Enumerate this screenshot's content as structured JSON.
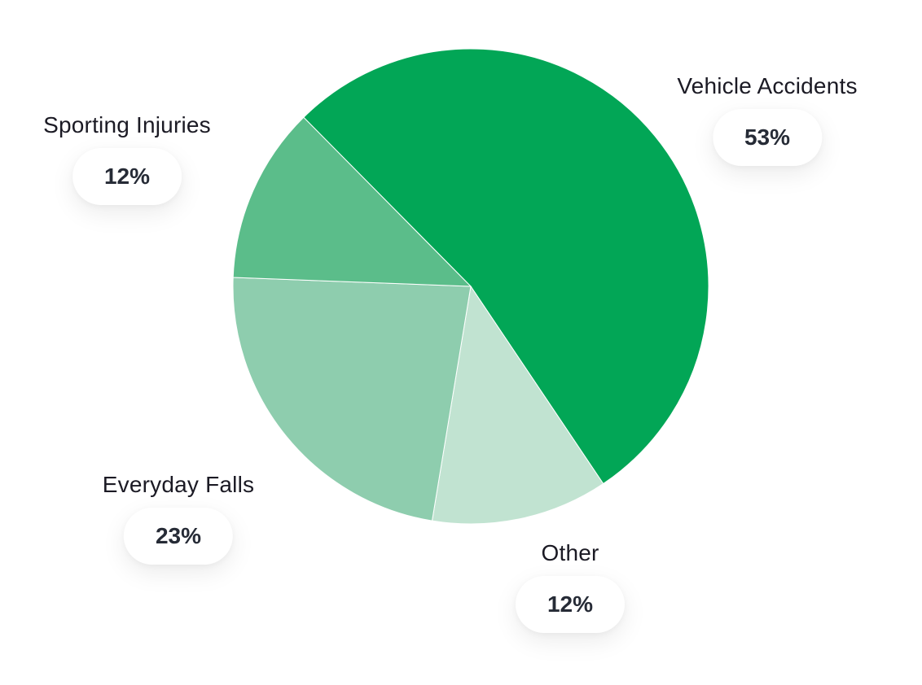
{
  "chart_data": {
    "type": "pie",
    "categories": [
      "Vehicle Accidents",
      "Other",
      "Everyday Falls",
      "Sporting Injuries"
    ],
    "values": [
      53,
      12,
      23,
      12
    ],
    "value_labels": [
      "53%",
      "12%",
      "23%",
      "12%"
    ],
    "colors": [
      "#02a656",
      "#c1e3d1",
      "#8ecdae",
      "#5bbd8a"
    ],
    "start": "upper-left, clockwise",
    "legend": "none",
    "title": ""
  }
}
